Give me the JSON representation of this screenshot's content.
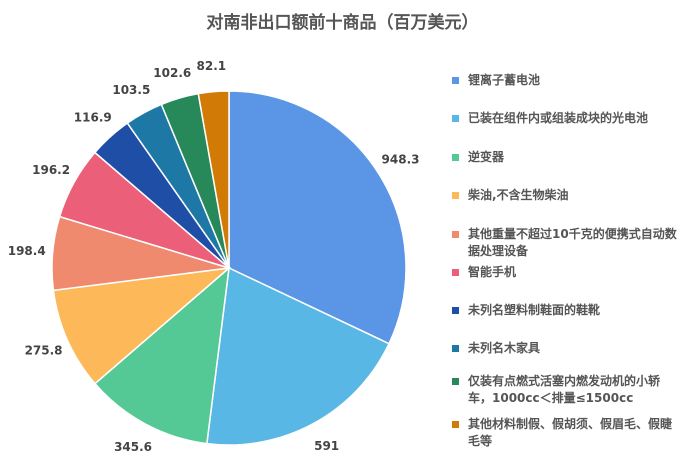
{
  "chart_data": {
    "type": "pie",
    "title": "对南非出口额前十商品（百万美元）",
    "legend_position": "right",
    "start_angle": "top, clockwise",
    "categories": [
      "锂离子蓄电池",
      "已装在组件内或组装成块的光电池",
      "逆变器",
      "柴油,不含生物柴油",
      "其他重量不超过10千克的便携式自动数据处理设备",
      "智能手机",
      "未列名塑料制鞋面的鞋靴",
      "未列名木家具",
      "仅装有点燃式活塞内燃发动机的小轿车，1000cc＜排量≤1500cc",
      "其他材料制假、假胡须、假眉毛、假睫毛等"
    ],
    "values": [
      948.3,
      591,
      345.6,
      275.8,
      198.4,
      196.2,
      116.9,
      103.5,
      102.6,
      82.1
    ],
    "data_labels": [
      "948.3",
      "591",
      "345.6",
      "275.8",
      "198.4",
      "196.2",
      "116.9",
      "103.5",
      "102.6",
      "82.1"
    ],
    "colors": [
      "#5b95e5",
      "#59b7e5",
      "#55c995",
      "#fdb85a",
      "#ef8a6f",
      "#ec5f78",
      "#1f4ea6",
      "#1e78a6",
      "#27895a",
      "#d17a05"
    ]
  }
}
